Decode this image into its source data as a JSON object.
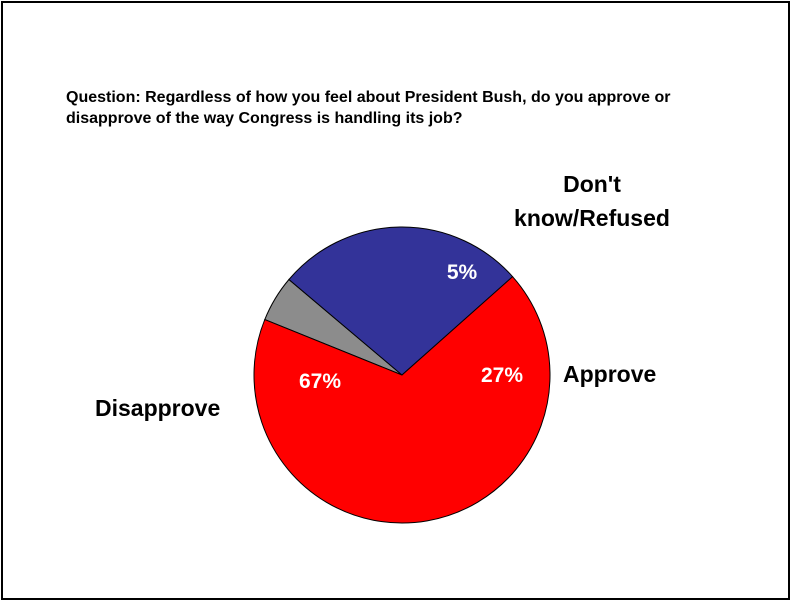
{
  "question": "Question: Regardless of how you feel about President Bush, do you approve or disapprove of the way Congress is handling its job?",
  "chart_data": {
    "type": "pie",
    "title": "Question: Regardless of how you feel about President Bush, do you approve or disapprove of the way Congress is handling its job?",
    "slices": [
      {
        "name": "Don't know/Refused",
        "label_line1": "Don't",
        "label_line2": "know/Refused",
        "value": 5,
        "percent_label": "5%",
        "color": "#8c8c8c"
      },
      {
        "name": "Approve",
        "value": 27,
        "percent_label": "27%",
        "color": "#333399"
      },
      {
        "name": "Disapprove",
        "value": 67,
        "percent_label": "67%",
        "color": "#ff0000"
      }
    ],
    "legend": "none"
  }
}
